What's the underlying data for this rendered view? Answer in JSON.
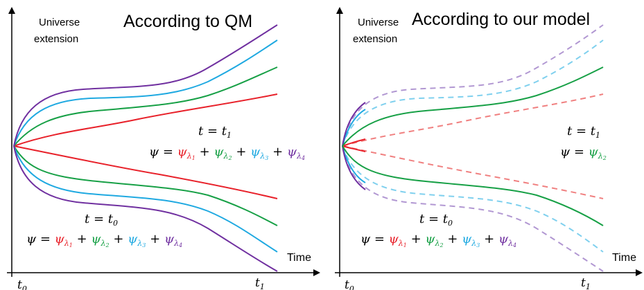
{
  "colors": {
    "red": "#e8212a",
    "green": "#17a046",
    "blue": "#1fa9e1",
    "purple": "#7030a0",
    "light_red": "#f08080",
    "light_blue": "#7fd0ee",
    "light_purple": "#b197d2",
    "axis": "#000000"
  },
  "panels": [
    {
      "title": "According to QM",
      "ylabel_line1": "Universe",
      "ylabel_line2": "extension",
      "xlabel": "Time",
      "tick_left": "t",
      "tick_left_sub": "0",
      "tick_right": "t",
      "tick_right_sub": "1",
      "eq_t1": {
        "lhs": "t = t",
        "sub": "1"
      },
      "eq_t1_psi": {
        "lhs": "ψ = ",
        "terms": [
          "ψ",
          "ψ",
          "ψ",
          "ψ"
        ],
        "subs": [
          "λ",
          "λ",
          "λ",
          "λ"
        ],
        "subsub": [
          "1",
          "2",
          "3",
          "4"
        ],
        "plus": "+"
      },
      "eq_t0": {
        "lhs": "t = t",
        "sub": "0"
      },
      "eq_t0_psi": {
        "lhs": "ψ = ",
        "terms": [
          "ψ",
          "ψ",
          "ψ",
          "ψ"
        ],
        "subs": [
          "λ",
          "λ",
          "λ",
          "λ"
        ],
        "subsub": [
          "1",
          "2",
          "3",
          "4"
        ],
        "plus": "+"
      }
    },
    {
      "title": "According to our model",
      "ylabel_line1": "Universe",
      "ylabel_line2": "extension",
      "xlabel": "Time",
      "tick_left": "t",
      "tick_left_sub": "0",
      "tick_right": "t",
      "tick_right_sub": "1",
      "eq_t1": {
        "lhs": "t = t",
        "sub": "1"
      },
      "eq_t1_psi": {
        "lhs": "ψ = ",
        "term": "ψ",
        "sub": "λ",
        "subsub": "2"
      },
      "eq_t0": {
        "lhs": "t = t",
        "sub": "0"
      },
      "eq_t0_psi": {
        "lhs": "ψ = ",
        "terms": [
          "ψ",
          "ψ",
          "ψ",
          "ψ"
        ],
        "subs": [
          "λ",
          "λ",
          "λ",
          "λ"
        ],
        "subsub": [
          "1",
          "2",
          "3",
          "4"
        ],
        "plus": "+"
      }
    }
  ]
}
